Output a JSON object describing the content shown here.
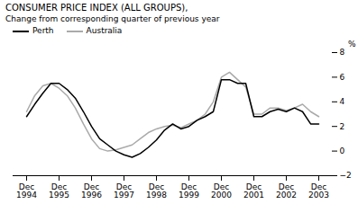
{
  "chart_data": {
    "type": "line",
    "title": "CONSUMER PRICE INDEX (ALL GROUPS),",
    "subtitle": "Change from corresponding quarter of previous year",
    "y_label": "%",
    "categories": [
      "Dec\n1994",
      null,
      null,
      null,
      "Dec\n1995",
      null,
      null,
      null,
      "Dec\n1996",
      null,
      null,
      null,
      "Dec\n1997",
      null,
      null,
      null,
      "Dec\n1998",
      null,
      null,
      null,
      "Dec\n1999",
      null,
      null,
      null,
      "Dec\n2000",
      null,
      null,
      null,
      "Dec\n2001",
      null,
      null,
      null,
      "Dec\n2002",
      null,
      null,
      null,
      "Dec\n2003"
    ],
    "series": [
      {
        "name": "Perth",
        "color": "#000000",
        "values": [
          2.8,
          3.8,
          4.7,
          5.5,
          5.5,
          5.0,
          4.3,
          3.2,
          2.0,
          1.0,
          0.5,
          0.0,
          -0.3,
          -0.5,
          -0.2,
          0.3,
          0.9,
          1.7,
          2.2,
          1.8,
          2.0,
          2.5,
          2.8,
          3.2,
          5.8,
          5.8,
          5.5,
          5.5,
          2.8,
          2.8,
          3.2,
          3.4,
          3.2,
          3.5,
          3.2,
          2.2,
          2.2
        ]
      },
      {
        "name": "Australia",
        "color": "#aaaaaa",
        "values": [
          3.2,
          4.5,
          5.3,
          5.5,
          5.1,
          4.5,
          3.5,
          2.2,
          1.0,
          0.2,
          0.0,
          0.1,
          0.3,
          0.5,
          1.0,
          1.5,
          1.8,
          2.0,
          2.1,
          1.9,
          2.2,
          2.5,
          3.0,
          4.0,
          6.0,
          6.4,
          5.8,
          5.2,
          3.0,
          3.0,
          3.5,
          3.5,
          3.3,
          3.5,
          3.8,
          3.2,
          2.8
        ]
      }
    ],
    "ylim": [
      -2,
      8
    ],
    "yticks": [
      -2,
      0,
      2,
      4,
      6,
      8
    ],
    "grid": false,
    "legend": "upper left"
  }
}
